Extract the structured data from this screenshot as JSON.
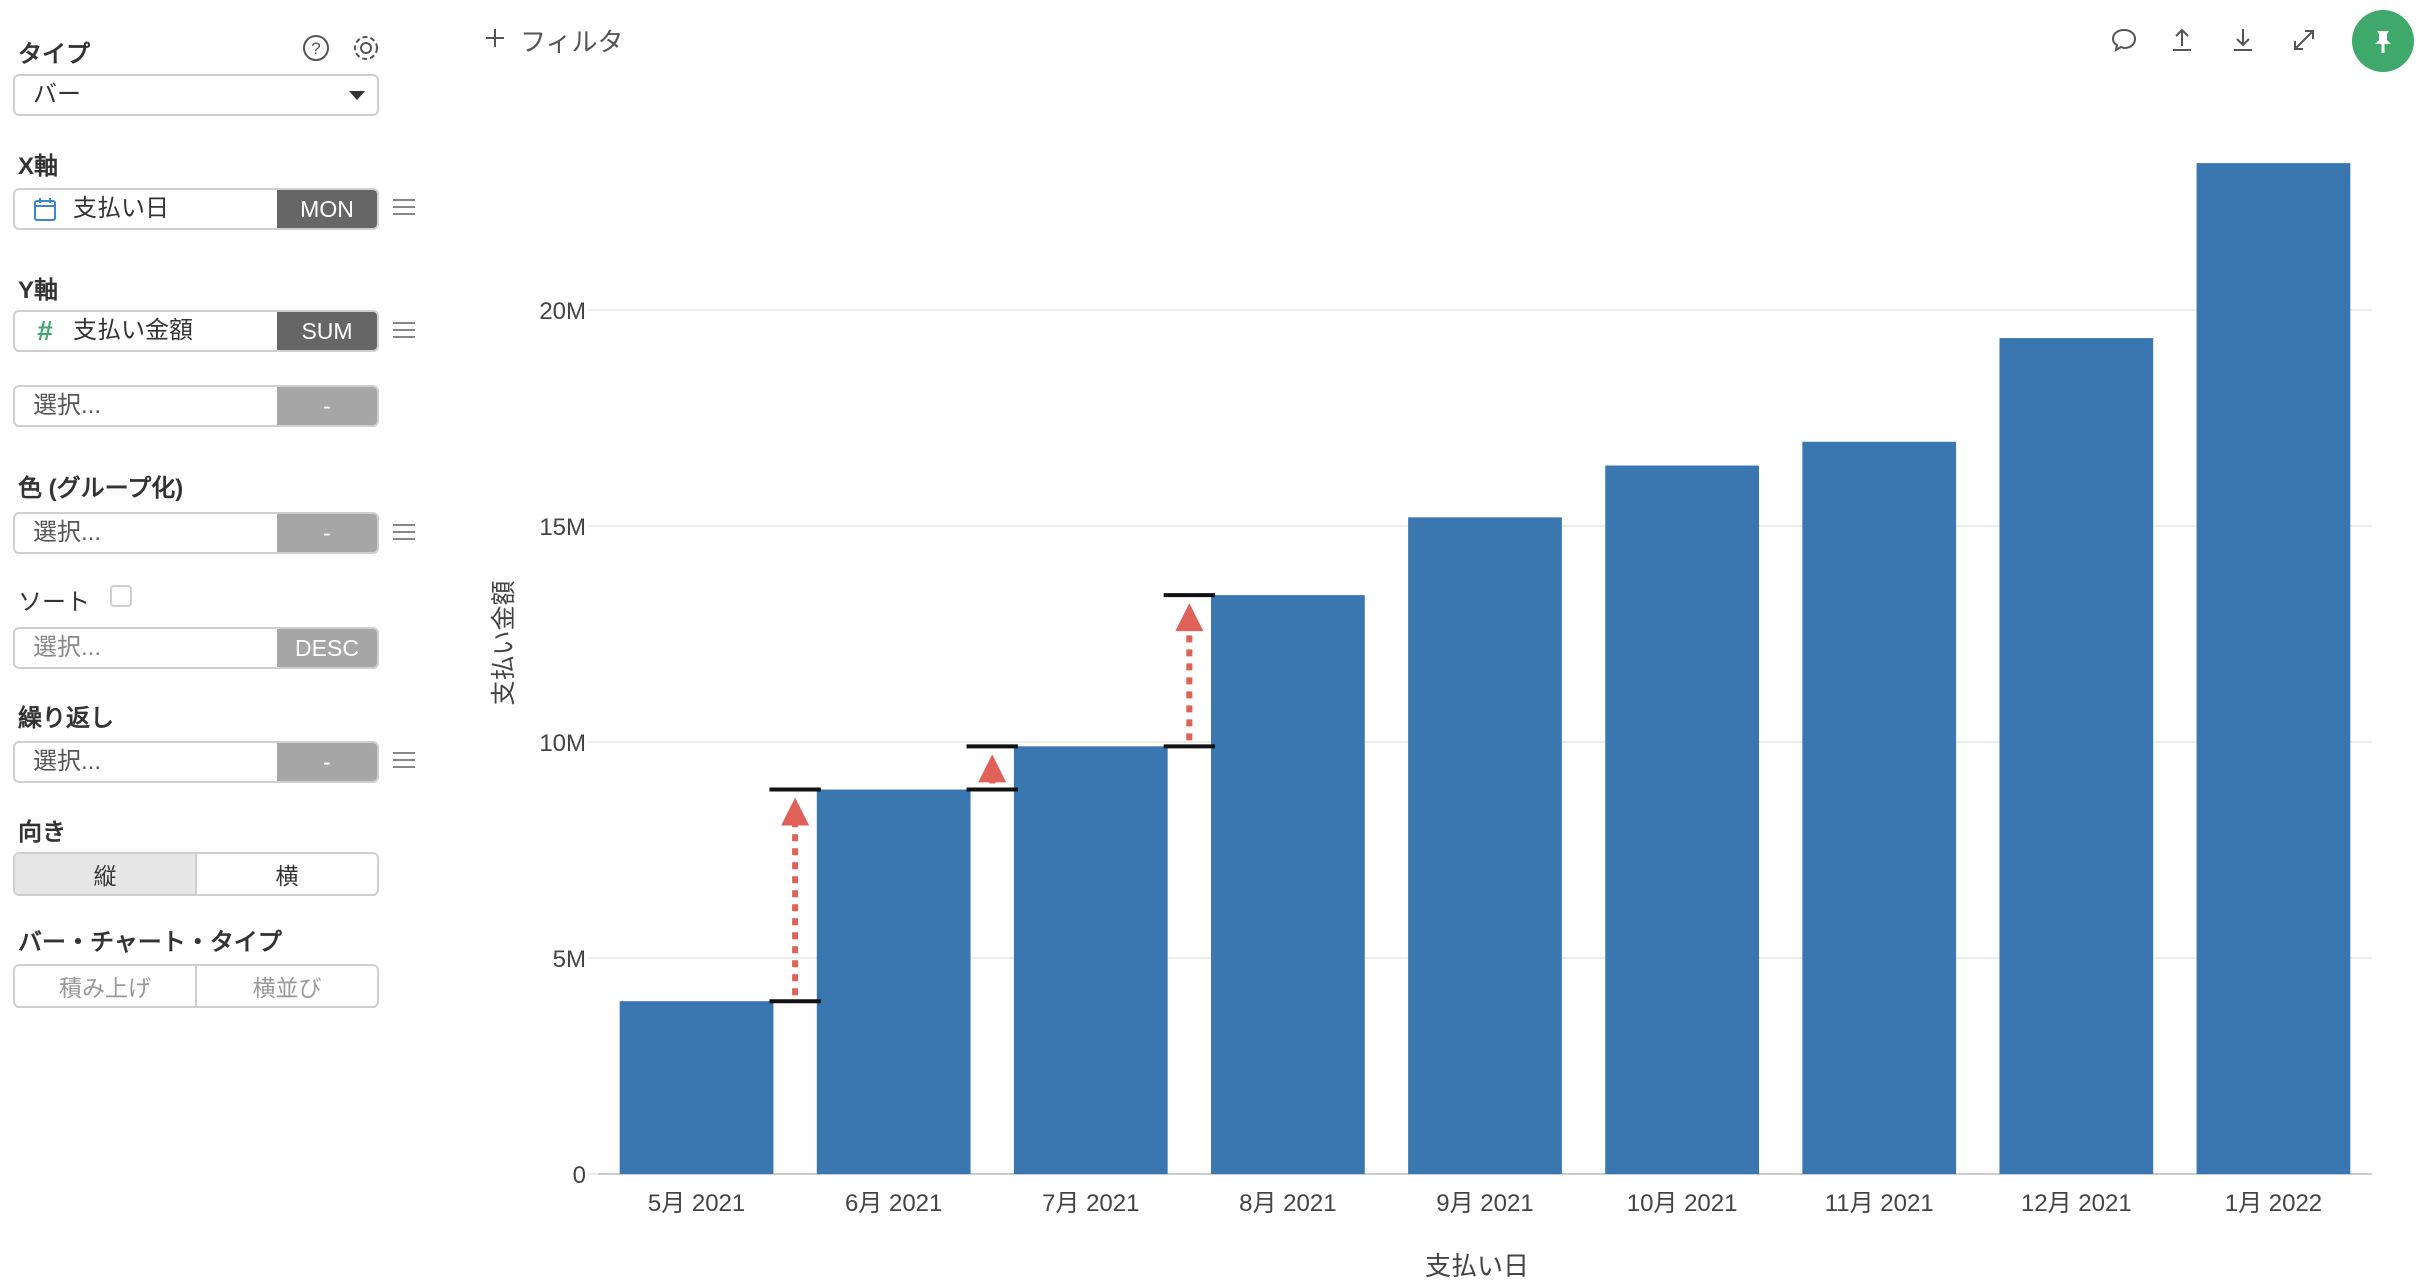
{
  "sidebar": {
    "type_label": "タイプ",
    "type_value": "バー",
    "xaxis_label": "X軸",
    "xaxis_field": "支払い日",
    "xaxis_tag": "MON",
    "yaxis_label": "Y軸",
    "yaxis_field": "支払い金額",
    "yaxis_tag": "SUM",
    "yaxis2_placeholder": "選択...",
    "yaxis2_tag": "-",
    "color_label": "色 (グループ化)",
    "color_placeholder": "選択...",
    "color_tag": "-",
    "sort_label": "ソート",
    "sort_placeholder": "選択...",
    "sort_tag": "DESC",
    "repeat_label": "繰り返し",
    "repeat_placeholder": "選択...",
    "repeat_tag": "-",
    "orientation_label": "向き",
    "orientation_options": [
      "縦",
      "横"
    ],
    "orientation_selected": "縦",
    "bar_type_label": "バー・チャート・タイプ",
    "bar_type_options": [
      "積み上げ",
      "横並び"
    ]
  },
  "toolbar": {
    "filter_label": "フィルタ",
    "icons": [
      "comment-icon",
      "upload-icon",
      "download-icon",
      "expand-icon",
      "pin-icon"
    ]
  },
  "colors": {
    "bar": "#3a76b0",
    "arrow": "#e0605a",
    "pin": "#3ea96a",
    "tag": "#666666"
  },
  "chart_data": {
    "type": "bar",
    "xlabel": "支払い日",
    "ylabel": "支払い金額",
    "categories": [
      "5月 2021",
      "6月 2021",
      "7月 2021",
      "8月 2021",
      "9月 2021",
      "10月 2021",
      "11月 2021",
      "12月 2021",
      "1月 2022"
    ],
    "values": [
      4.0,
      8.9,
      9.9,
      13.4,
      15.2,
      16.4,
      16.95,
      19.35,
      23.4
    ],
    "unit": "M",
    "ylim": [
      0,
      24
    ],
    "yticks": [
      "0",
      "5M",
      "10M",
      "15M",
      "20M"
    ],
    "grid": true,
    "annotations": [
      {
        "from": 4.0,
        "to": 8.9
      },
      {
        "from": 8.9,
        "to": 9.9
      },
      {
        "from": 9.9,
        "to": 13.4
      }
    ]
  }
}
